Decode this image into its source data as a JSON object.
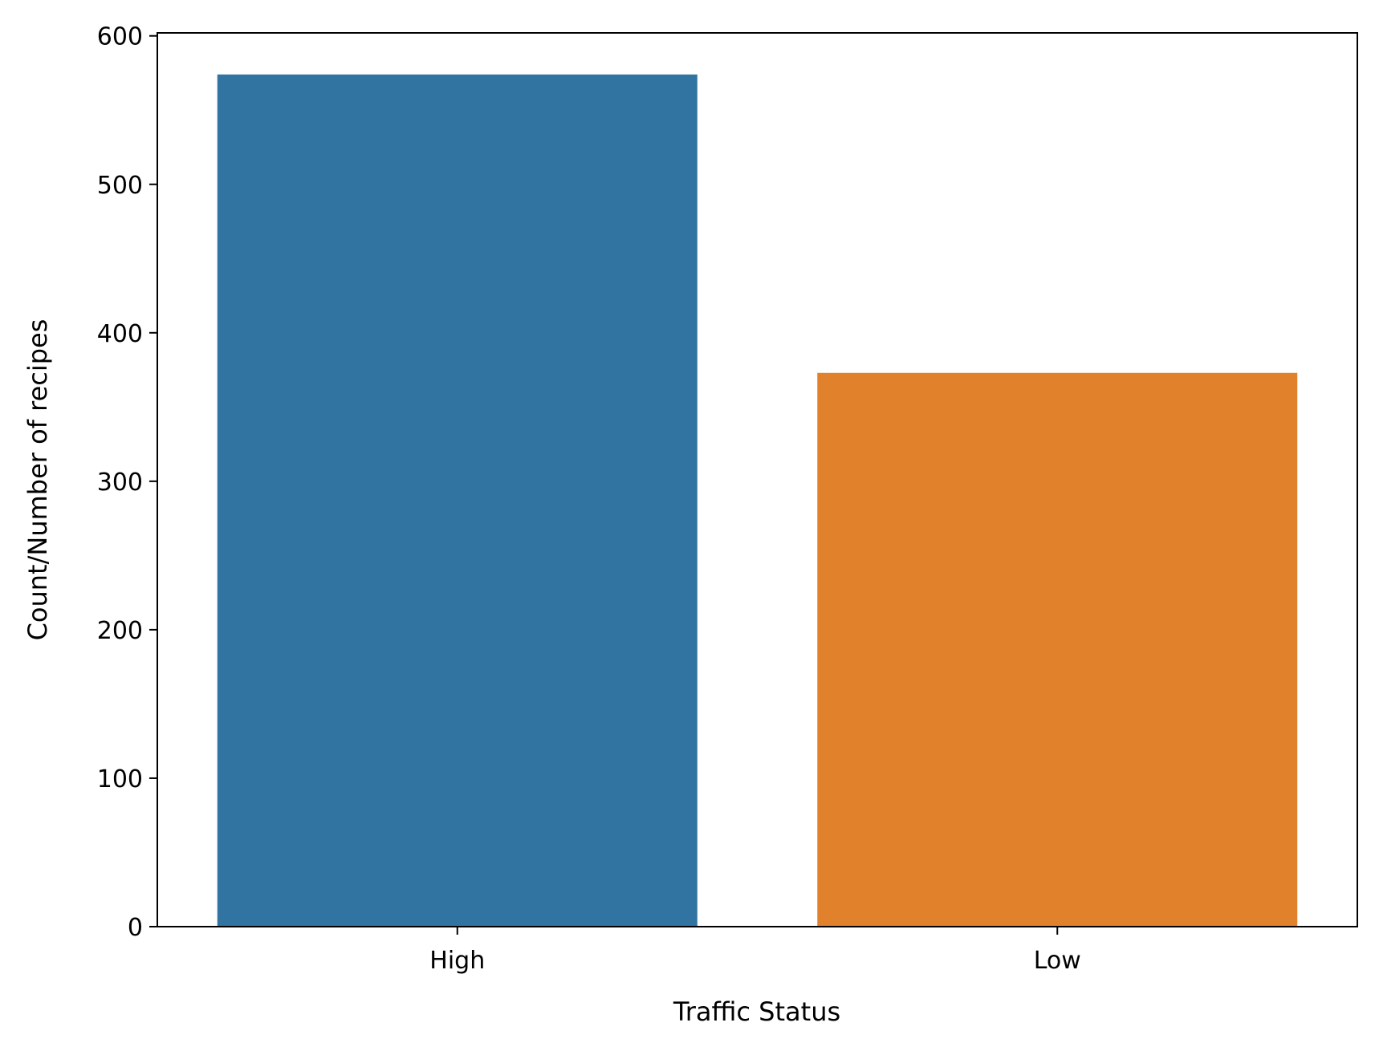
{
  "chart_data": {
    "type": "bar",
    "title": "",
    "xlabel": "Traffic Status",
    "ylabel": "Count/Number of recipes",
    "categories": [
      "High",
      "Low"
    ],
    "values": [
      574,
      373
    ],
    "colors": [
      "#3274a1",
      "#e1812c"
    ],
    "ylim": [
      0,
      602
    ],
    "yticks": [
      0,
      100,
      200,
      300,
      400,
      500,
      600
    ],
    "grid": false,
    "legend": "none"
  }
}
